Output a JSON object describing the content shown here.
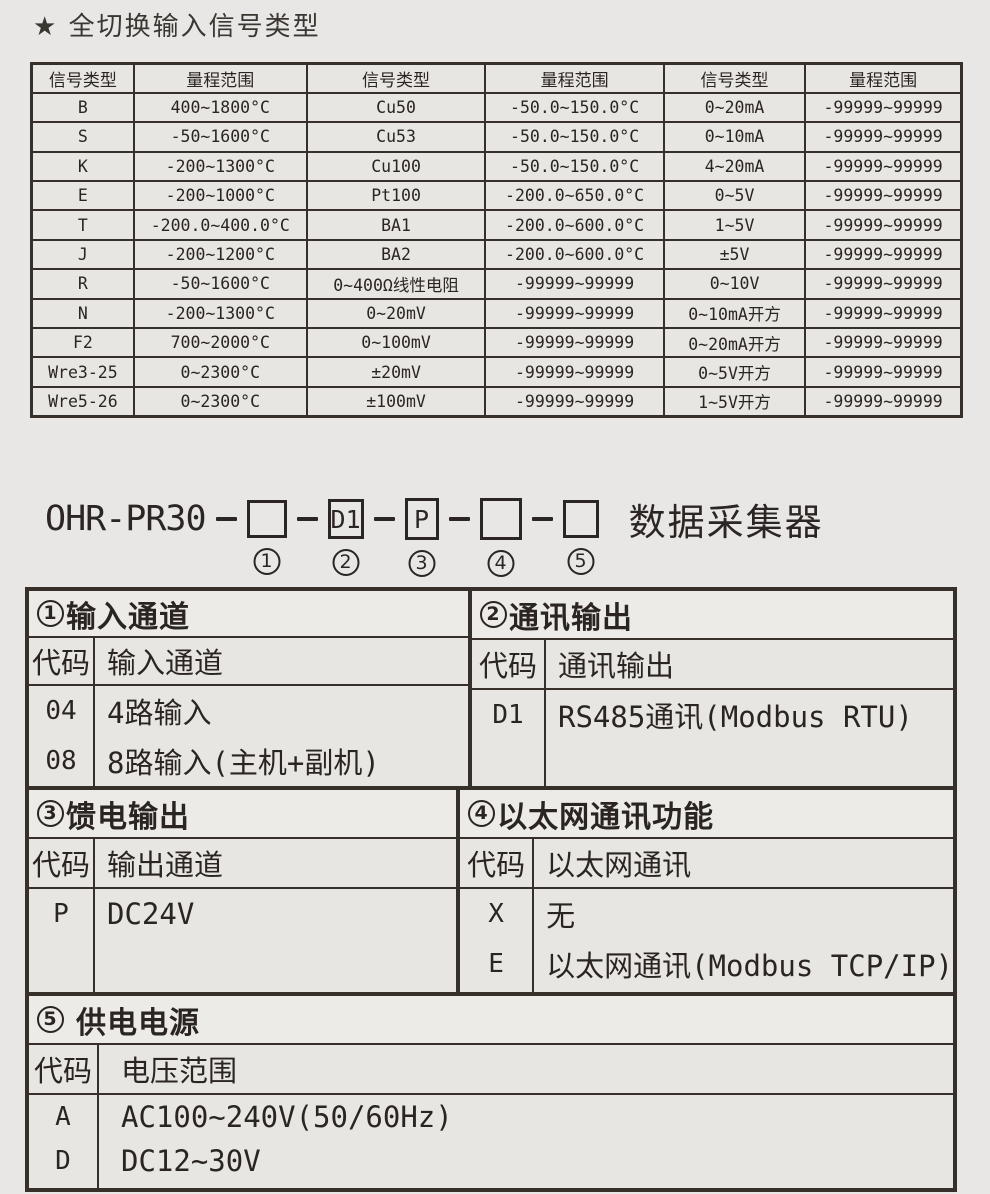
{
  "title": "★ 全切换输入信号类型",
  "signal_table": {
    "headers": [
      "信号类型",
      "量程范围",
      "信号类型",
      "量程范围",
      "信号类型",
      "量程范围"
    ],
    "rows": [
      [
        "B",
        "400~1800°C",
        "Cu50",
        "-50.0~150.0°C",
        "0~20mA",
        "-99999~99999"
      ],
      [
        "S",
        "-50~1600°C",
        "Cu53",
        "-50.0~150.0°C",
        "0~10mA",
        "-99999~99999"
      ],
      [
        "K",
        "-200~1300°C",
        "Cu100",
        "-50.0~150.0°C",
        "4~20mA",
        "-99999~99999"
      ],
      [
        "E",
        "-200~1000°C",
        "Pt100",
        "-200.0~650.0°C",
        "0~5V",
        "-99999~99999"
      ],
      [
        "T",
        "-200.0~400.0°C",
        "BA1",
        "-200.0~600.0°C",
        "1~5V",
        "-99999~99999"
      ],
      [
        "J",
        "-200~1200°C",
        "BA2",
        "-200.0~600.0°C",
        "±5V",
        "-99999~99999"
      ],
      [
        "R",
        "-50~1600°C",
        "0~400Ω线性电阻",
        "-99999~99999",
        "0~10V",
        "-99999~99999"
      ],
      [
        "N",
        "-200~1300°C",
        "0~20mV",
        "-99999~99999",
        "0~10mA开方",
        "-99999~99999"
      ],
      [
        "F2",
        "700~2000°C",
        "0~100mV",
        "-99999~99999",
        "0~20mA开方",
        "-99999~99999"
      ],
      [
        "Wre3-25",
        "0~2300°C",
        "±20mV",
        "-99999~99999",
        "0~5V开方",
        "-99999~99999"
      ],
      [
        "Wre5-26",
        "0~2300°C",
        "±100mV",
        "-99999~99999",
        "1~5V开方",
        "-99999~99999"
      ]
    ]
  },
  "model": {
    "prefix": "OHR-PR30",
    "separator": "-",
    "boxes": [
      {
        "code": "",
        "num": "1"
      },
      {
        "code": "D1",
        "num": "2"
      },
      {
        "code": "P",
        "num": "3"
      },
      {
        "code": "",
        "num": "4"
      },
      {
        "code": "",
        "num": "5"
      }
    ],
    "suffix": "数据采集器"
  },
  "option_tables": [
    {
      "num": "1",
      "title": "输入通道",
      "code_header": "代码",
      "desc_header": "输入通道",
      "rows": [
        {
          "code": "04",
          "desc": "4路输入"
        },
        {
          "code": "08",
          "desc": "8路输入(主机+副机)"
        }
      ]
    },
    {
      "num": "2",
      "title": "通讯输出",
      "code_header": "代码",
      "desc_header": "通讯输出",
      "rows": [
        {
          "code": "D1",
          "desc": "RS485通讯(Modbus RTU)"
        }
      ]
    },
    {
      "num": "3",
      "title": "馈电输出",
      "code_header": "代码",
      "desc_header": "输出通道",
      "rows": [
        {
          "code": "P",
          "desc": "DC24V"
        }
      ]
    },
    {
      "num": "4",
      "title": "以太网通讯功能",
      "code_header": "代码",
      "desc_header": "以太网通讯",
      "rows": [
        {
          "code": "X",
          "desc": "无"
        },
        {
          "code": "E",
          "desc": "以太网通讯(Modbus TCP/IP)"
        }
      ]
    },
    {
      "num": "5",
      "title": "供电电源",
      "code_header": "代码",
      "desc_header": "电压范围",
      "rows": [
        {
          "code": "A",
          "desc": "AC100~240V(50/60Hz)"
        },
        {
          "code": "D",
          "desc": "DC12~30V"
        }
      ]
    }
  ],
  "colors": {
    "background": "#e9e7e5",
    "border": "#372f2a",
    "text": "#2b2522"
  }
}
